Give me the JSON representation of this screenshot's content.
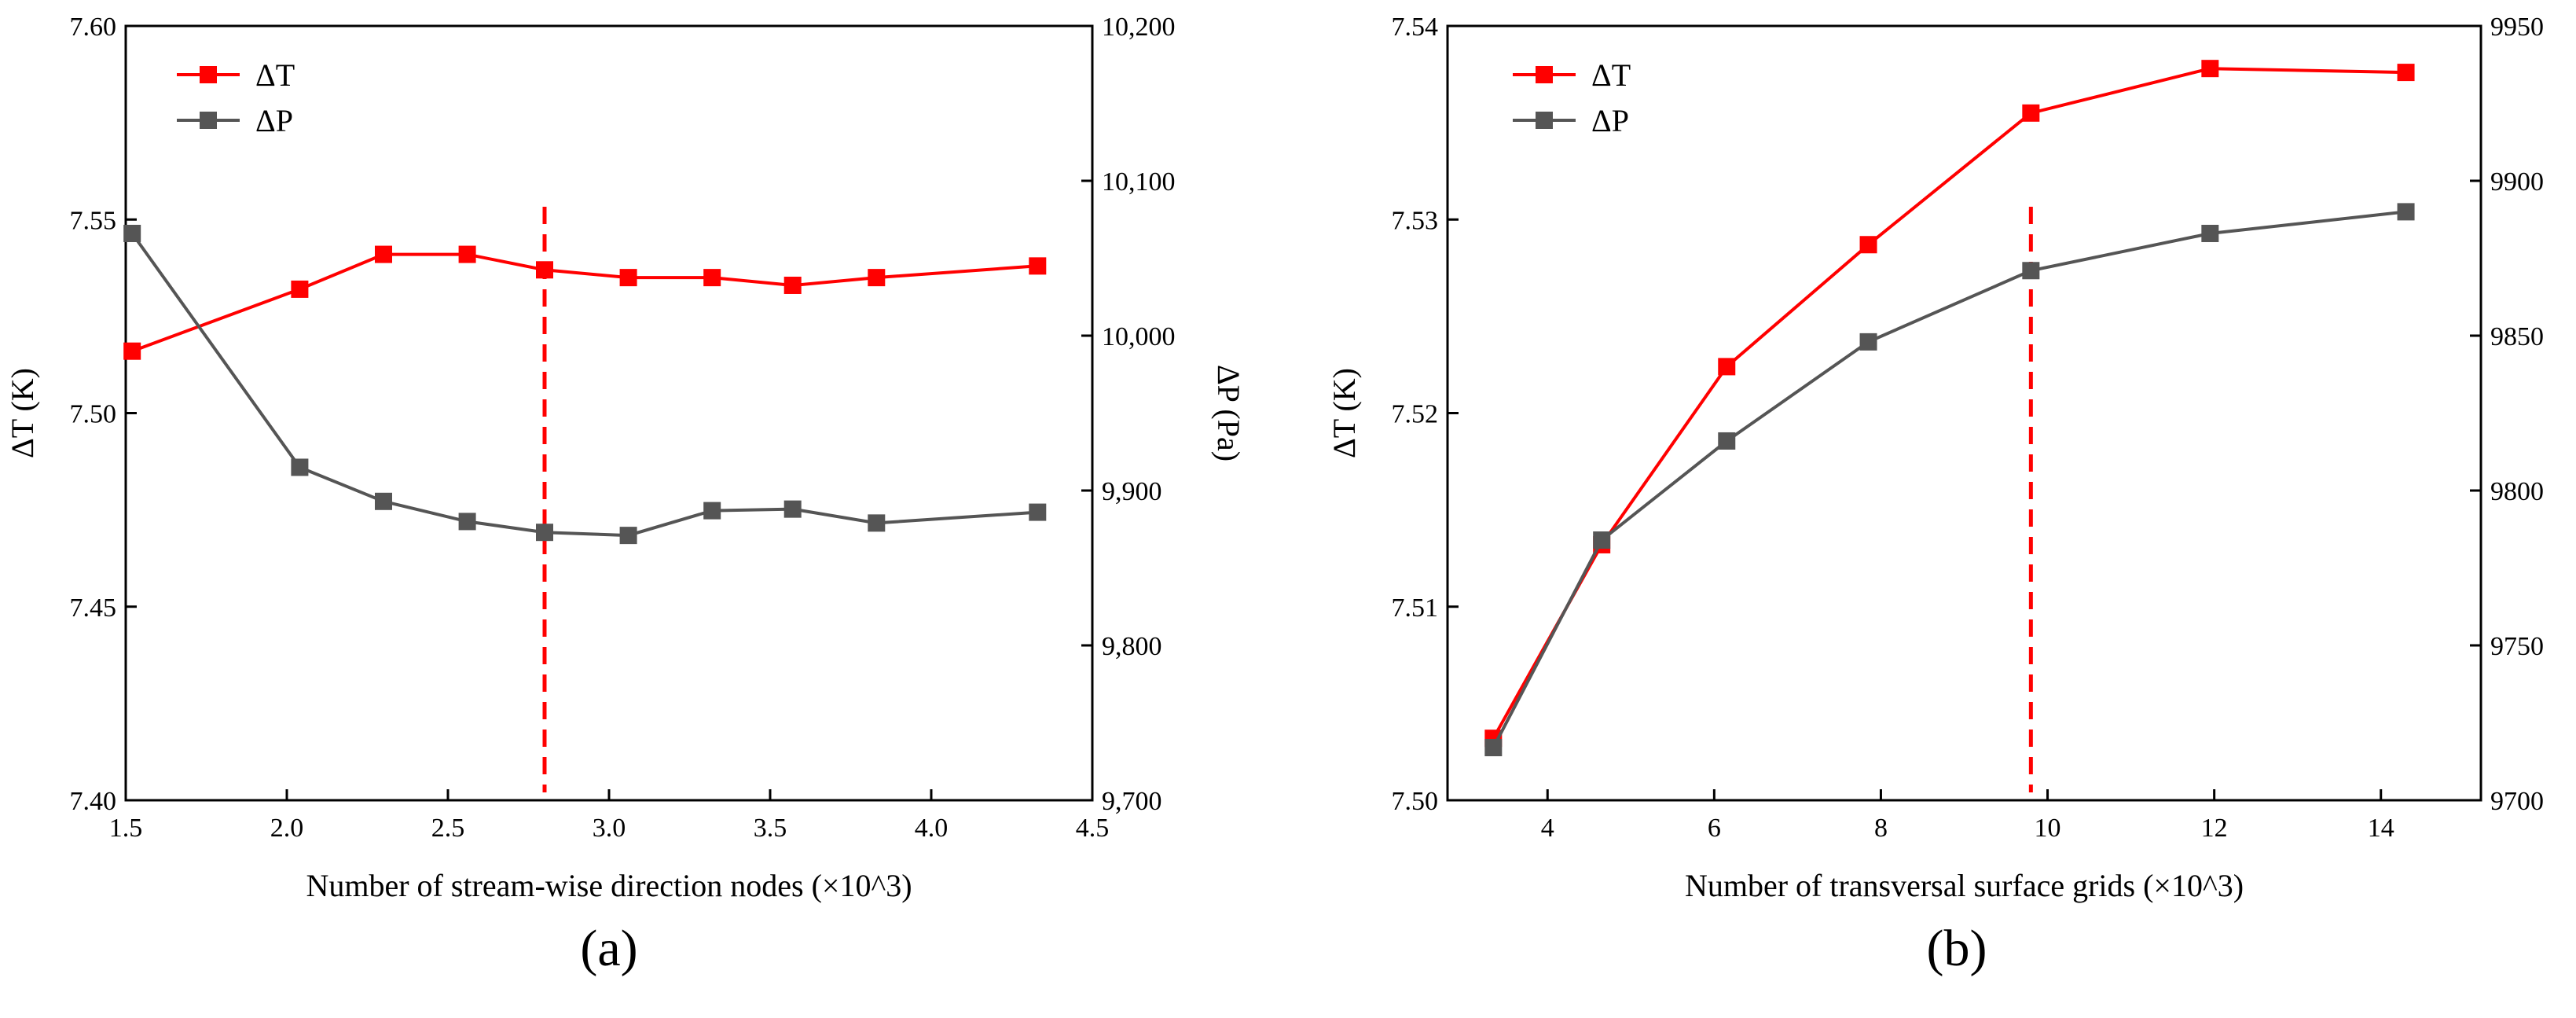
{
  "colors": {
    "dT": "#ff0000",
    "dP": "#555555",
    "axis": "#000000",
    "marker_line": "#ff0000"
  },
  "chart_data": [
    {
      "type": "line",
      "panel_label": "(a)",
      "xlabel": "Number of stream-wise direction nodes (×10^3)",
      "ylabel_left": "ΔT (K)",
      "ylabel_right": "ΔP (Pa)",
      "xlim": [
        1.5,
        4.5
      ],
      "xticks": [
        "1.5",
        "2.0",
        "2.5",
        "3.0",
        "3.5",
        "4.0",
        "4.5"
      ],
      "ylim_left": [
        7.4,
        7.6
      ],
      "yticks_left": [
        "7.40",
        "7.45",
        "7.50",
        "7.55",
        "7.60"
      ],
      "ylim_right": [
        9700,
        10200
      ],
      "yticks_right": [
        "9,700",
        "9,800",
        "9,900",
        "10,000",
        "10,100",
        "10,200"
      ],
      "legend_position": "top-left",
      "reference_line_x": 2.8,
      "series": [
        {
          "name": "ΔT",
          "axis": "left",
          "color": "#ff0000",
          "x": [
            1.52,
            2.04,
            2.3,
            2.56,
            2.8,
            3.06,
            3.32,
            3.57,
            3.83,
            4.33
          ],
          "values": [
            7.516,
            7.532,
            7.541,
            7.541,
            7.537,
            7.535,
            7.535,
            7.533,
            7.535,
            7.538
          ]
        },
        {
          "name": "ΔP",
          "axis": "right",
          "color": "#555555",
          "x": [
            1.52,
            2.04,
            2.3,
            2.56,
            2.8,
            3.06,
            3.32,
            3.57,
            3.83,
            4.33
          ],
          "values": [
            10066,
            9915,
            9893,
            9880,
            9873,
            9871,
            9887,
            9888,
            9879,
            9886
          ]
        }
      ]
    },
    {
      "type": "line",
      "panel_label": "(b)",
      "xlabel": "Number of transversal surface grids (×10^3)",
      "ylabel_left": "ΔT (K)",
      "ylabel_right": "ΔP (Pa)",
      "xlim": [
        2.8,
        15.2
      ],
      "xticks": [
        "4",
        "6",
        "8",
        "10",
        "12",
        "14"
      ],
      "xtick_values": [
        4,
        6,
        8,
        10,
        12,
        14
      ],
      "ylim_left": [
        7.5,
        7.54
      ],
      "yticks_left": [
        "7.50",
        "7.51",
        "7.52",
        "7.53",
        "7.54"
      ],
      "ylim_right": [
        9700,
        9950
      ],
      "yticks_right": [
        "9700",
        "9750",
        "9800",
        "9850",
        "9900",
        "9950"
      ],
      "legend_position": "top-left",
      "reference_line_x": 9.8,
      "series": [
        {
          "name": "ΔT",
          "axis": "left",
          "color": "#ff0000",
          "x": [
            3.35,
            4.65,
            6.15,
            7.85,
            9.8,
            11.95,
            14.3
          ],
          "values": [
            7.5032,
            7.5132,
            7.5224,
            7.5287,
            7.5355,
            7.5378,
            7.5376
          ]
        },
        {
          "name": "ΔP",
          "axis": "right",
          "color": "#555555",
          "x": [
            3.35,
            4.65,
            6.15,
            7.85,
            9.8,
            11.95,
            14.3
          ],
          "values": [
            9717,
            9784,
            9816,
            9848,
            9871,
            9883,
            9890
          ]
        }
      ]
    }
  ]
}
